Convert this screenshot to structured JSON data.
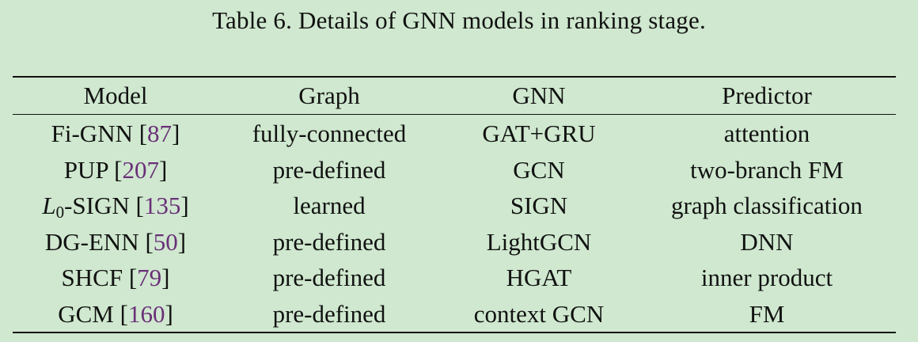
{
  "caption": "Table 6.  Details of GNN models in ranking stage.",
  "table": {
    "headers": [
      "Model",
      "Graph",
      "GNN",
      "Predictor"
    ],
    "rows": [
      {
        "model_prefix": "",
        "model_sub": "",
        "model": "Fi-GNN",
        "ref": "87",
        "graph": "fully-connected",
        "gnn": "GAT+GRU",
        "predictor": "attention"
      },
      {
        "model_prefix": "",
        "model_sub": "",
        "model": "PUP",
        "ref": "207",
        "graph": "pre-defined",
        "gnn": "GCN",
        "predictor": "two-branch FM"
      },
      {
        "model_prefix": "L",
        "model_sub": "0",
        "model": "-SIGN",
        "ref": "135",
        "graph": "learned",
        "gnn": "SIGN",
        "predictor": "graph classification"
      },
      {
        "model_prefix": "",
        "model_sub": "",
        "model": "DG-ENN",
        "ref": "50",
        "graph": "pre-defined",
        "gnn": "LightGCN",
        "predictor": "DNN"
      },
      {
        "model_prefix": "",
        "model_sub": "",
        "model": "SHCF",
        "ref": "79",
        "graph": "pre-defined",
        "gnn": "HGAT",
        "predictor": "inner product"
      },
      {
        "model_prefix": "",
        "model_sub": "",
        "model": "GCM",
        "ref": "160",
        "graph": "pre-defined",
        "gnn": "context GCN",
        "predictor": "FM"
      }
    ]
  },
  "colors": {
    "background": "#cfe8cf",
    "text": "#111111",
    "citation": "#6a2f78"
  }
}
